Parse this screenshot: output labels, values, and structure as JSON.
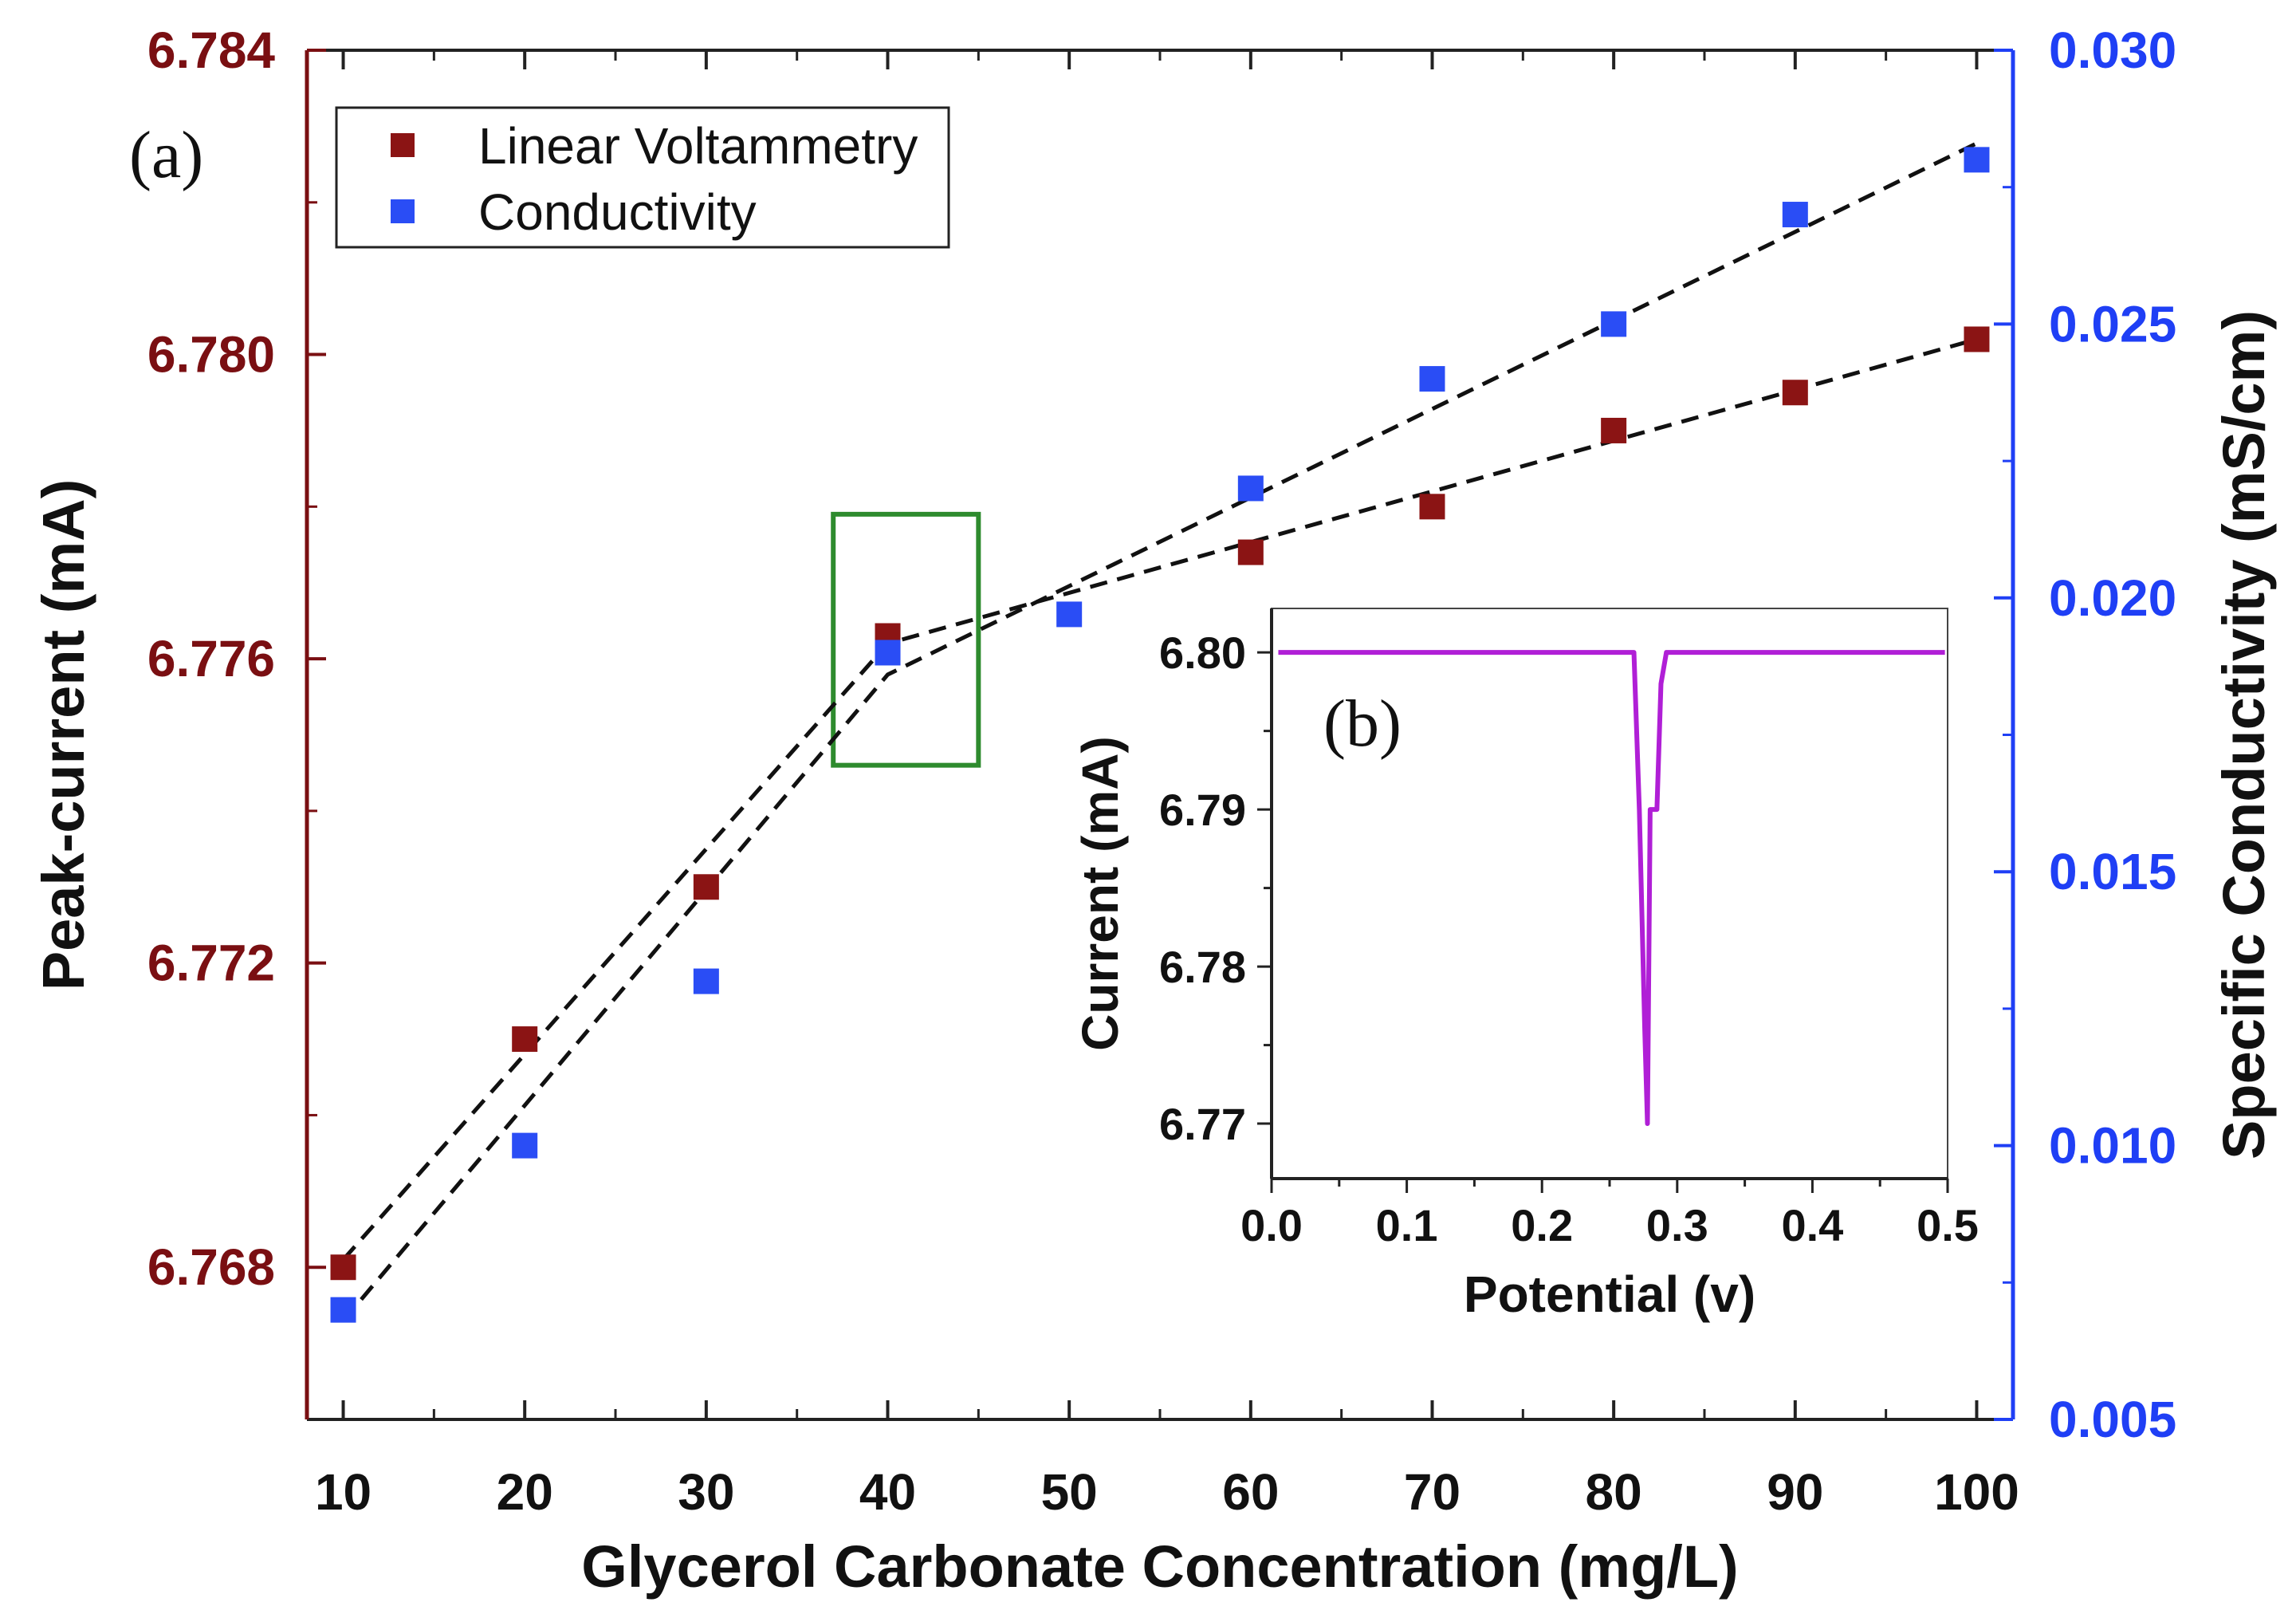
{
  "colors": {
    "left_axis": "#7a0f12",
    "right_axis": "#1f3ff5",
    "voltammetry_marker": "#8b1414",
    "conductivity_marker": "#2a4df5",
    "fit_line": "#111111",
    "highlight_box": "#2e8b2e",
    "inset_line": "#b01fd6",
    "text": "#111111"
  },
  "chart_data": [
    {
      "id": "main",
      "panel_label": "(a)",
      "type": "scatter",
      "xlabel": "Glycerol Carbonate Concentration (mg/L)",
      "ylabel_left": "Peak-current (mA)",
      "ylabel_right": "Specific Conductivity (mS/cm)",
      "xlim": [
        8,
        102
      ],
      "ylim_left": [
        6.766,
        6.784
      ],
      "ylim_right": [
        0.005,
        0.03
      ],
      "x_ticks": [
        10,
        20,
        30,
        40,
        50,
        60,
        70,
        80,
        90,
        100
      ],
      "x_tick_labels": [
        "10",
        "20",
        "30",
        "40",
        "50",
        "60",
        "70",
        "80",
        "90",
        "100"
      ],
      "y_left_ticks": [
        6.768,
        6.772,
        6.776,
        6.78,
        6.784
      ],
      "y_left_tick_labels": [
        "6.768",
        "6.772",
        "6.776",
        "6.780",
        "6.784"
      ],
      "y_right_ticks": [
        0.005,
        0.01,
        0.015,
        0.02,
        0.025,
        0.03
      ],
      "y_right_tick_labels": [
        "0.005",
        "0.010",
        "0.015",
        "0.020",
        "0.025",
        "0.030"
      ],
      "legend": {
        "placement": "top-left",
        "entries": [
          "Linear Voltammetry",
          "Conductivity"
        ]
      },
      "series": [
        {
          "name": "Linear Voltammetry",
          "axis": "left",
          "x": [
            10,
            20,
            30,
            40,
            60,
            70,
            80,
            90,
            100
          ],
          "y": [
            6.768,
            6.771,
            6.773,
            6.7763,
            6.7774,
            6.778,
            6.779,
            6.7795,
            6.7802
          ]
        },
        {
          "name": "Conductivity",
          "axis": "right",
          "x": [
            10,
            20,
            30,
            40,
            50,
            60,
            70,
            80,
            90,
            100
          ],
          "y": [
            0.007,
            0.01,
            0.013,
            0.019,
            0.0197,
            0.022,
            0.024,
            0.025,
            0.027,
            0.028
          ]
        }
      ],
      "fit_lines": [
        {
          "axis": "left",
          "points": [
            [
              10,
              6.7681
            ],
            [
              40,
              6.7762
            ],
            [
              100,
              6.7802
            ]
          ]
        },
        {
          "axis": "right",
          "points": [
            [
              10,
              0.0068
            ],
            [
              40,
              0.0186
            ],
            [
              100,
              0.0283
            ]
          ]
        }
      ],
      "highlight_box": {
        "x": [
          37,
          45
        ],
        "y_left": [
          6.7746,
          6.7779
        ]
      }
    },
    {
      "id": "inset",
      "panel_label": "(b)",
      "type": "line",
      "xlabel": "Potential (v)",
      "ylabel": "Current (mA)",
      "xlim": [
        0.0,
        0.5
      ],
      "ylim": [
        6.7665,
        6.8028
      ],
      "x_ticks": [
        0.0,
        0.1,
        0.2,
        0.3,
        0.4,
        0.5
      ],
      "x_tick_labels": [
        "0.0",
        "0.1",
        "0.2",
        "0.3",
        "0.4",
        "0.5"
      ],
      "y_ticks": [
        6.77,
        6.78,
        6.79,
        6.8
      ],
      "y_tick_labels": [
        "6.77",
        "6.78",
        "6.79",
        "6.80"
      ],
      "series": [
        {
          "x": [
            0.005,
            0.268,
            0.272,
            0.276,
            0.278,
            0.28,
            0.282,
            0.285,
            0.288,
            0.292,
            0.498
          ],
          "y": [
            6.8,
            6.8,
            6.79,
            6.776,
            6.77,
            6.79,
            6.79,
            6.79,
            6.798,
            6.8,
            6.8
          ]
        }
      ]
    }
  ]
}
